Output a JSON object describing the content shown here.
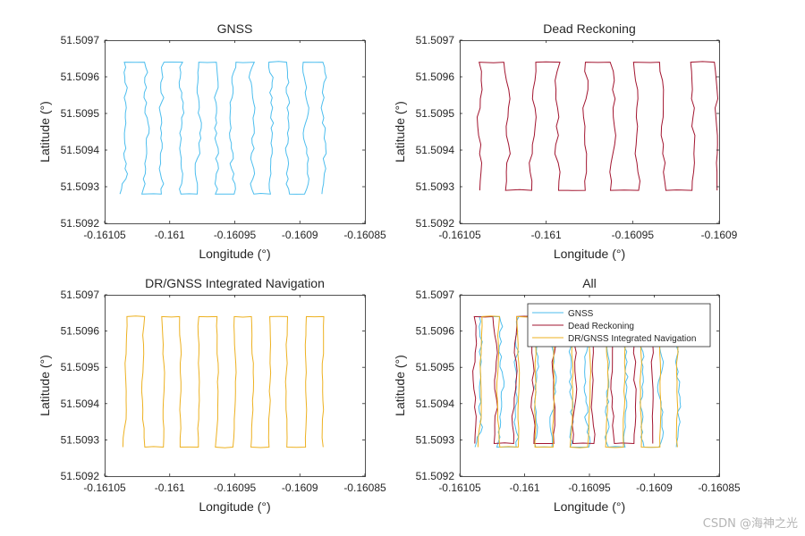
{
  "colors": {
    "gnss": "#4DBEEE",
    "dr": "#A2142F",
    "integrated": "#EDB120",
    "axis": "#262626",
    "box": "#262626"
  },
  "watermark": "CSDN @海神之光",
  "chart_data": [
    {
      "type": "line",
      "title": "GNSS",
      "xlabel": "Longitude (°)",
      "ylabel": "Latitude (°)",
      "xlim": [
        -0.16105,
        -0.16085
      ],
      "ylim": [
        51.5092,
        51.5097
      ],
      "xticks": [
        -0.16105,
        -0.161,
        -0.16095,
        -0.1609,
        -0.16085
      ],
      "xtick_labels": [
        "-0.16105",
        "-0.161",
        "-0.16095",
        "-0.1609",
        "-0.16085"
      ],
      "yticks": [
        51.5092,
        51.5093,
        51.5094,
        51.5095,
        51.5096,
        51.5097
      ],
      "ytick_labels": [
        "51.5092",
        "51.5093",
        "51.5094",
        "51.5095",
        "51.5096",
        "51.5097"
      ],
      "series": [
        {
          "name": "GNSS",
          "color_key": "gnss",
          "style": "gnss",
          "x0": -0.161033,
          "x1": -0.160882,
          "y_low": 51.50928,
          "y_high": 51.50964,
          "lanes": 6,
          "start_dx": 4.5e-06
        }
      ]
    },
    {
      "type": "line",
      "title": "Dead Reckoning",
      "xlabel": "Longitude (°)",
      "ylabel": "Latitude (°)",
      "xlim": [
        -0.16105,
        -0.1609
      ],
      "ylim": [
        51.5092,
        51.5097
      ],
      "xticks": [
        -0.16105,
        -0.161,
        -0.16095,
        -0.1609
      ],
      "xtick_labels": [
        "-0.16105",
        "-0.161",
        "-0.16095",
        "-0.1609"
      ],
      "yticks": [
        51.5092,
        51.5093,
        51.5094,
        51.5095,
        51.5096,
        51.5097
      ],
      "ytick_labels": [
        "51.5092",
        "51.5093",
        "51.5094",
        "51.5095",
        "51.5096",
        "51.5097"
      ],
      "series": [
        {
          "name": "Dead Reckoning",
          "color_key": "dr",
          "style": "dr",
          "x0": -0.161038,
          "x1": -0.160902,
          "y_low": 51.50929,
          "y_high": 51.50964,
          "lanes": 5,
          "start_dx": 1.5e-06
        }
      ]
    },
    {
      "type": "line",
      "title": "DR/GNSS Integrated Navigation",
      "xlabel": "Longitude (°)",
      "ylabel": "Latitude (°)",
      "xlim": [
        -0.16105,
        -0.16085
      ],
      "ylim": [
        51.5092,
        51.5097
      ],
      "xticks": [
        -0.16105,
        -0.161,
        -0.16095,
        -0.1609,
        -0.16085
      ],
      "xtick_labels": [
        "-0.16105",
        "-0.161",
        "-0.16095",
        "-0.1609",
        "-0.16085"
      ],
      "yticks": [
        51.5092,
        51.5093,
        51.5094,
        51.5095,
        51.5096,
        51.5097
      ],
      "ytick_labels": [
        "51.5092",
        "51.5093",
        "51.5094",
        "51.5095",
        "51.5096",
        "51.5097"
      ],
      "series": [
        {
          "name": "DR/GNSS Integrated Navigation",
          "color_key": "integrated",
          "style": "int",
          "x0": -0.161033,
          "x1": -0.160882,
          "y_low": 51.50928,
          "y_high": 51.50964,
          "lanes": 6,
          "start_dx": 3e-06
        }
      ]
    },
    {
      "type": "line",
      "title": "All",
      "xlabel": "Longitude (°)",
      "ylabel": "Latitude (°)",
      "xlim": [
        -0.16105,
        -0.16085
      ],
      "ylim": [
        51.5092,
        51.5097
      ],
      "xticks": [
        -0.16105,
        -0.161,
        -0.16095,
        -0.1609,
        -0.16085
      ],
      "xtick_labels": [
        "-0.16105",
        "-0.161",
        "-0.16095",
        "-0.1609",
        "-0.16085"
      ],
      "yticks": [
        51.5092,
        51.5093,
        51.5094,
        51.5095,
        51.5096,
        51.5097
      ],
      "ytick_labels": [
        "51.5092",
        "51.5093",
        "51.5094",
        "51.5095",
        "51.5096",
        "51.5097"
      ],
      "legend": {
        "location": "northeast",
        "entries": [
          "GNSS",
          "Dead Reckoning",
          "DR/GNSS Integrated Navigation"
        ]
      },
      "series": [
        {
          "name": "GNSS",
          "color_key": "gnss",
          "style": "gnss",
          "x0": -0.161033,
          "x1": -0.160882,
          "y_low": 51.50928,
          "y_high": 51.50964,
          "lanes": 6,
          "start_dx": 4.5e-06
        },
        {
          "name": "Dead Reckoning",
          "color_key": "dr",
          "style": "dr",
          "x0": -0.161038,
          "x1": -0.160902,
          "y_low": 51.50929,
          "y_high": 51.50964,
          "lanes": 5,
          "start_dx": 1.5e-06
        },
        {
          "name": "DR/GNSS Integrated Navigation",
          "color_key": "integrated",
          "style": "int",
          "x0": -0.161033,
          "x1": -0.160882,
          "y_low": 51.50928,
          "y_high": 51.50964,
          "lanes": 6,
          "start_dx": 3e-06
        }
      ]
    }
  ]
}
